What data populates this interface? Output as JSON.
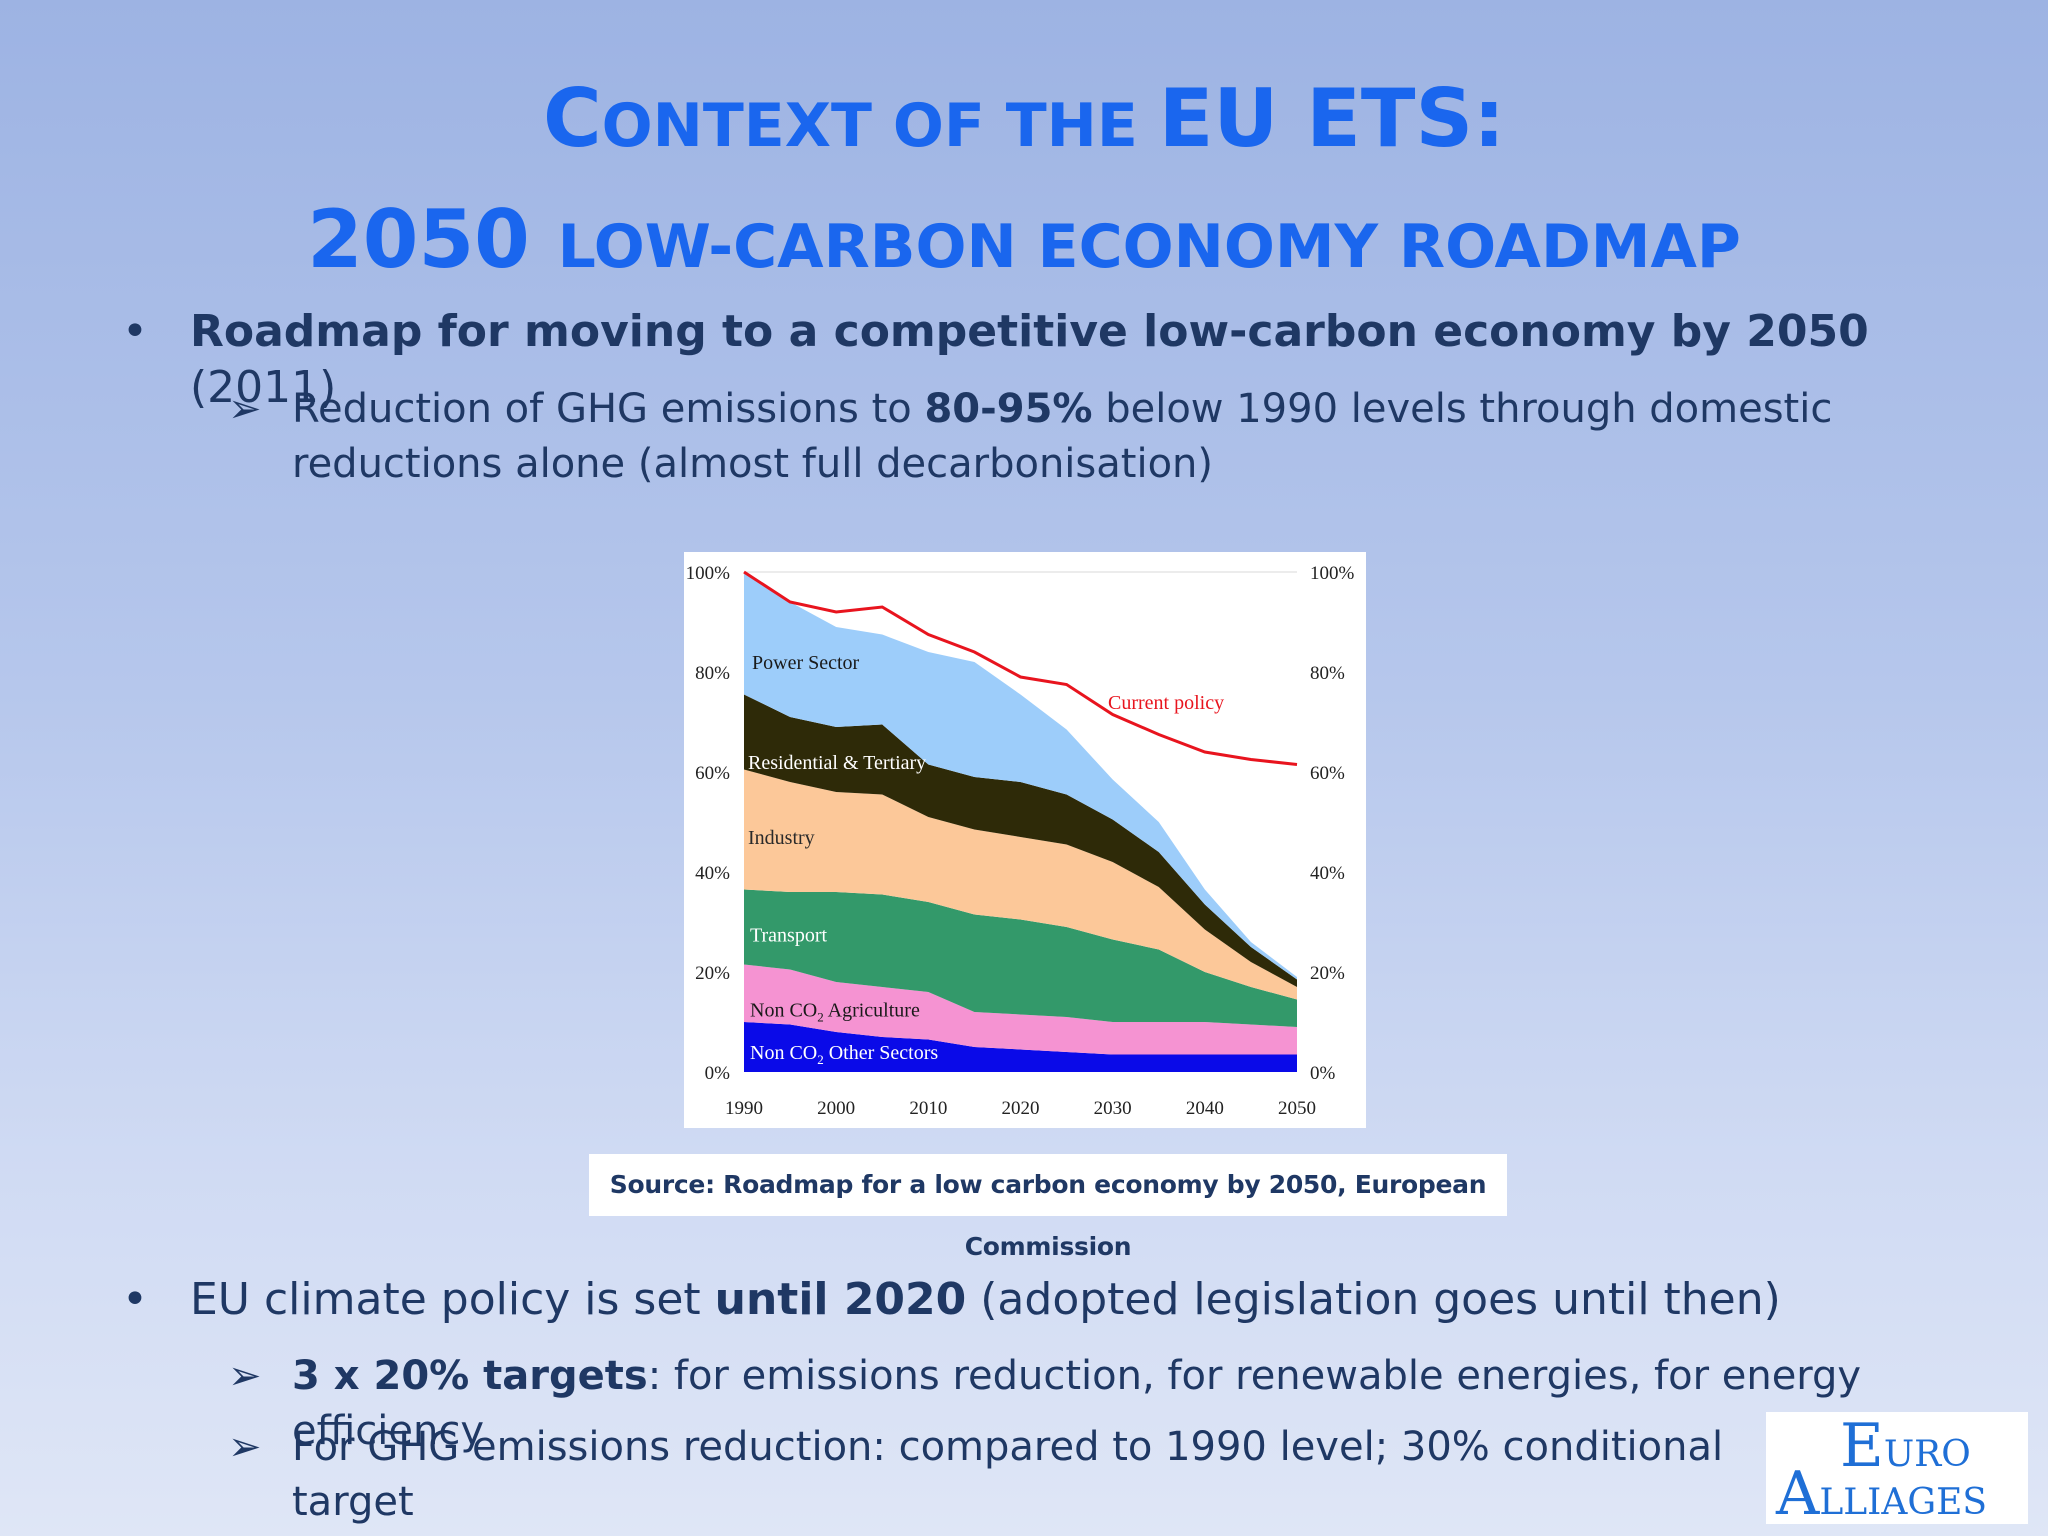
{
  "slide": {
    "title_line1": [
      "C",
      "ONTEXT OF THE ",
      "EU ETS:"
    ],
    "title_line2": [
      "2050 ",
      "LOW-CARBON ECONOMY ROADMAP"
    ],
    "bullet1": {
      "bold": "Roadmap for moving to a competitive low-carbon economy by 2050",
      "rest": " (2011)"
    },
    "sub1": {
      "pre": "Reduction of GHG emissions to ",
      "bold": "80-95%",
      "post": " below 1990 levels through domestic",
      "line2": "reductions alone (almost full decarbonisation)"
    },
    "bullet2": {
      "pre": "EU climate policy is set ",
      "bold": "until 2020",
      "post": " (adopted legislation goes until then)"
    },
    "sub2": {
      "bold": "3 x 20% targets",
      "post": ": for emissions reduction, for renewable energies, for energy efficiency"
    },
    "sub3": {
      "text": "For GHG emissions reduction: compared to 1990 level; 30% conditional target"
    },
    "source": "Source: Roadmap for a low carbon economy by 2050, European Commission",
    "logo": {
      "l1_big": "E",
      "l1_rest": "URO",
      "l2_big": "A",
      "l2_rest": "LLIAGES"
    },
    "bullet_glyph": "•",
    "arrow_glyph": "➢"
  },
  "chart_data": {
    "type": "area",
    "x": [
      1990,
      1995,
      2000,
      2005,
      2010,
      2015,
      2020,
      2025,
      2030,
      2035,
      2040,
      2045,
      2050
    ],
    "x_ticks": [
      "1990",
      "2000",
      "2010",
      "2020",
      "2030",
      "2040",
      "2050"
    ],
    "y_ticks_left": [
      "0%",
      "20%",
      "40%",
      "60%",
      "80%",
      "100%"
    ],
    "y_ticks_right": [
      "0%",
      "20%",
      "40%",
      "60%",
      "80%",
      "100%"
    ],
    "ylim": [
      0,
      100
    ],
    "stacked": true,
    "series": [
      {
        "name": "Non CO2 Other Sectors",
        "label_main": "Non CO",
        "label_sub": "2",
        "label_tail": " Other Sectors",
        "color": "#0a0ae8",
        "values": [
          10,
          9.5,
          8,
          7,
          6.5,
          5,
          4.5,
          4,
          3.5,
          3.5,
          3.5,
          3.5,
          3.5
        ]
      },
      {
        "name": "Non CO2 Agriculture",
        "label_main": "Non CO",
        "label_sub": "2",
        "label_tail": " Agriculture",
        "color": "#f593d2",
        "values": [
          11.5,
          11,
          10,
          10,
          9.5,
          7,
          7,
          7,
          6.5,
          6.5,
          6.5,
          6,
          5.5
        ]
      },
      {
        "name": "Transport",
        "color": "#33996a",
        "values": [
          15,
          15.5,
          18,
          18.5,
          18,
          19.5,
          19,
          18,
          16.5,
          14.5,
          10,
          7.5,
          5.5
        ]
      },
      {
        "name": "Industry",
        "color": "#fcc899",
        "values": [
          24,
          22,
          20,
          20,
          17,
          17,
          16.5,
          16.5,
          15.5,
          12.5,
          8.5,
          5,
          2.5
        ]
      },
      {
        "name": "Residential & Tertiary",
        "color": "#2e2a08",
        "values": [
          15,
          13,
          13,
          14,
          10.5,
          10.5,
          11,
          10,
          8.5,
          7,
          5,
          3,
          1.5
        ]
      },
      {
        "name": "Power Sector",
        "color": "#9dcdfa",
        "values": [
          24.5,
          23,
          20,
          18,
          22.5,
          23,
          17.5,
          13,
          8,
          6,
          3,
          1,
          0.5
        ]
      }
    ],
    "current_policy": {
      "name": "Current policy",
      "color": "#e8141e",
      "x": [
        1990,
        1995,
        2000,
        2005,
        2010,
        2015,
        2020,
        2025,
        2030,
        2035,
        2040,
        2045,
        2050
      ],
      "values": [
        100,
        94,
        92,
        93,
        87.5,
        84,
        79,
        77.5,
        71.5,
        67.5,
        64,
        62.5,
        61.5
      ]
    }
  }
}
